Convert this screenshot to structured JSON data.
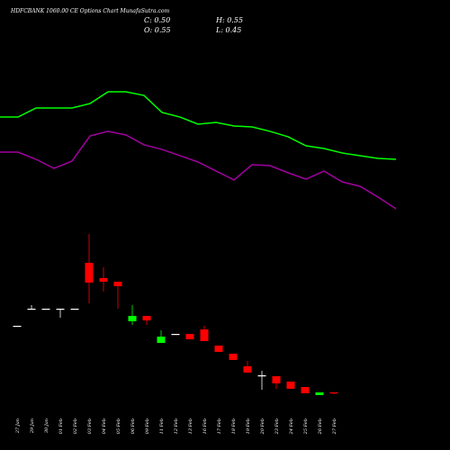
{
  "chart_data": {
    "type": "candlestick",
    "title": "HDFCBANK 1060.00  CE Options Chart MunafaSutra.com",
    "ohlc_labels": {
      "close": "C: 0.50",
      "high": "H: 0.55",
      "open": "O: 0.55",
      "low": "L: 0.45"
    },
    "categories": [
      "27 Jan",
      "29 Jan",
      "30 Jan",
      "01 Feb",
      "02 Feb",
      "03 Feb",
      "04 Feb",
      "05 Feb",
      "06 Feb",
      "09 Feb",
      "11 Feb",
      "12 Feb",
      "13 Feb",
      "16 Feb",
      "17 Feb",
      "18 Feb",
      "19 Feb",
      "20 Feb",
      "23 Feb",
      "24 Feb",
      "25 Feb",
      "26 Feb",
      "27 Feb"
    ],
    "open": [
      4.25,
      5.2,
      5.2,
      5.2,
      5.2,
      7.75,
      6.9,
      6.7,
      4.5,
      4.8,
      3.3,
      3.8,
      3.8,
      4.05,
      3.15,
      2.7,
      2.0,
      1.5,
      1.45,
      1.15,
      0.85,
      0.4,
      0.55
    ],
    "high": [
      4.25,
      5.4,
      5.2,
      5.2,
      5.2,
      9.35,
      7.5,
      6.7,
      5.4,
      4.8,
      4.0,
      3.8,
      3.8,
      4.25,
      3.15,
      2.7,
      2.3,
      1.75,
      1.45,
      1.15,
      0.85,
      0.55,
      0.55
    ],
    "low": [
      4.25,
      5.2,
      5.2,
      4.7,
      5.2,
      5.5,
      6.15,
      5.2,
      4.3,
      4.3,
      3.3,
      3.8,
      3.5,
      3.4,
      2.8,
      2.35,
      1.65,
      0.7,
      0.75,
      0.75,
      0.5,
      0.4,
      0.45
    ],
    "close": [
      4.25,
      5.2,
      5.2,
      5.2,
      5.2,
      6.65,
      6.7,
      6.45,
      4.8,
      4.55,
      3.65,
      3.8,
      3.5,
      3.4,
      2.8,
      2.35,
      1.65,
      1.5,
      1.05,
      0.75,
      0.5,
      0.55,
      0.5
    ],
    "up_color": "#00ff00",
    "down_color": "#ff0000",
    "flat_color": "#ffffff",
    "ylim": [
      0,
      10
    ],
    "lines": {
      "ylim": [
        0,
        10
      ],
      "series": [
        {
          "color": "#00ff00",
          "values": [
            7.33,
            7.33,
            8,
            8,
            8,
            8.33,
            9.2,
            9.2,
            8.93,
            7.67,
            7.33,
            6.8,
            6.93,
            6.67,
            6.6,
            6.27,
            5.87,
            5.2,
            5,
            4.67,
            4.47,
            4.27,
            4.2
          ]
        },
        {
          "color": "#a000a0",
          "values": [
            4.73,
            4.73,
            4.2,
            3.53,
            4.07,
            5.93,
            6.27,
            6,
            5.27,
            4.93,
            4.47,
            4,
            3.33,
            2.67,
            3.8,
            3.73,
            3.2,
            2.73,
            3.33,
            2.53,
            2.2,
            1.4,
            0.53
          ]
        }
      ]
    }
  }
}
